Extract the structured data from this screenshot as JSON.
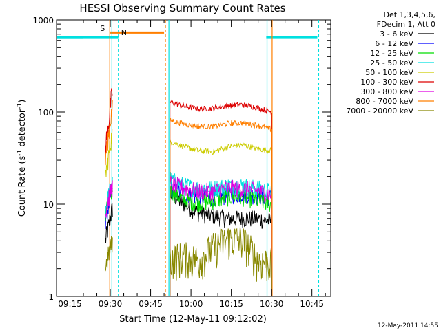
{
  "chart_data": {
    "type": "line",
    "title": "HESSI Observing Summary Count Rates",
    "xlabel": "Start Time (12-May-11 09:12:02)",
    "ylabel_main": "Count Rate (s",
    "ylabel_sup1": "-1",
    "ylabel_mid": " detector",
    "ylabel_sup2": "-1",
    "ylabel_end": ")",
    "x_ticks": [
      "09:15",
      "09:30",
      "09:45",
      "10:00",
      "10:15",
      "10:30",
      "10:45"
    ],
    "x_tick_minutes": [
      3,
      18,
      33,
      48,
      63,
      78,
      93
    ],
    "x_range_minutes": [
      -2,
      100
    ],
    "y_scale": "log",
    "y_range": [
      1,
      1000
    ],
    "y_ticks": [
      "1",
      "10",
      "100",
      "1000"
    ],
    "y_tick_values": [
      1,
      10,
      100,
      1000
    ],
    "legend_header": [
      "Det 1,3,4,5,6,",
      "FDecim 1, Att 0"
    ],
    "series": [
      {
        "name": "3 - 6 keV",
        "color": "#000000",
        "pre": [
          4,
          6,
          9
        ],
        "level": [
          13,
          10,
          8,
          7.5,
          7,
          7,
          7,
          6.5
        ]
      },
      {
        "name": "6 - 12 keV",
        "color": "#0000ff",
        "pre": [
          7,
          10,
          14
        ],
        "level": [
          15,
          13,
          12,
          12,
          12.5,
          13,
          12.5,
          12
        ]
      },
      {
        "name": "12 - 25 keV",
        "color": "#00dd00",
        "pre": [
          8,
          11,
          15
        ],
        "level": [
          14,
          11,
          10.5,
          11,
          12,
          12,
          11,
          10
        ]
      },
      {
        "name": "25 - 50 keV",
        "color": "#00e0e0",
        "pre": [
          9,
          13,
          17
        ],
        "level": [
          19,
          16,
          15,
          15,
          16,
          16,
          15,
          14
        ]
      },
      {
        "name": "50 - 100 keV",
        "color": "#cccc00",
        "pre": [
          20,
          35,
          60
        ],
        "level": [
          48,
          42,
          38,
          37,
          42,
          44,
          40,
          38
        ]
      },
      {
        "name": "100 - 300 keV",
        "color": "#dd0000",
        "pre": [
          40,
          80,
          170
        ],
        "level": [
          128,
          115,
          108,
          110,
          118,
          120,
          112,
          100
        ]
      },
      {
        "name": "300 - 800 keV",
        "color": "#e000e0",
        "pre": [
          8,
          12,
          16
        ],
        "level": [
          17,
          15,
          14,
          14,
          15,
          15,
          14,
          13
        ]
      },
      {
        "name": "800 - 7000 keV",
        "color": "#ff7f00",
        "pre": [
          30,
          60,
          110
        ],
        "level": [
          82,
          74,
          70,
          70,
          75,
          76,
          72,
          65
        ]
      },
      {
        "name": "7000 - 20000 keV",
        "color": "#888800",
        "pre": [
          2,
          3,
          4
        ],
        "level": [
          2.6,
          2.7,
          2.5,
          3.4,
          4.2,
          4.1,
          2.5,
          2.3
        ]
      }
    ],
    "annotations": {
      "S_label": "S",
      "N_label": "N",
      "saa_flag_minutes": [
        18,
        38
      ],
      "night_spans_minutes": [
        [
          -2,
          21
        ],
        [
          76,
          95
        ]
      ],
      "night_level": 650,
      "saa_level": 730
    }
  },
  "footer": {
    "timestamp": "12-May-2011 14:55"
  }
}
